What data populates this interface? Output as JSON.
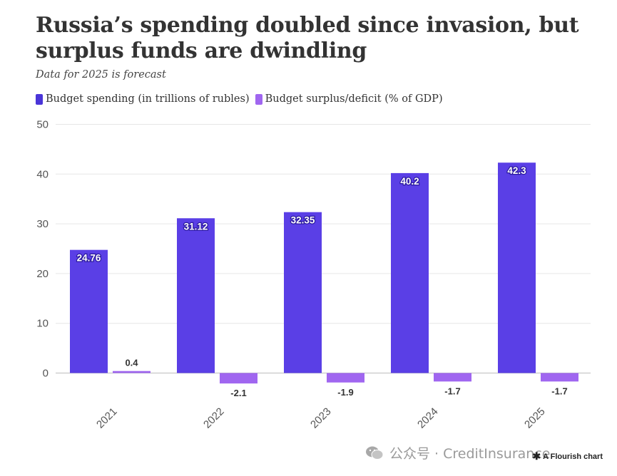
{
  "chart_data": {
    "type": "bar",
    "title": "Russia’s spending doubled since invasion, but surplus funds are dwindling",
    "subtitle": "Data for 2025 is forecast",
    "categories": [
      "2021",
      "2022",
      "2023",
      "2024",
      "2025"
    ],
    "series": [
      {
        "name": "Budget spending (in trillions of rubles)",
        "color": "#5a3fe6",
        "values": [
          24.76,
          31.12,
          32.35,
          40.2,
          42.3
        ],
        "labels": [
          "24.76",
          "31.12",
          "32.35",
          "40.2",
          "42.3"
        ]
      },
      {
        "name": "Budget surplus/deficit (% of GDP)",
        "color": "#a066f0",
        "values": [
          0.4,
          -2.1,
          -1.9,
          -1.7,
          -1.7
        ],
        "labels": [
          "0.4",
          "-2.1",
          "-1.9",
          "-1.7",
          "-1.7"
        ]
      }
    ],
    "y_ticks": [
      0,
      10,
      20,
      30,
      40,
      50
    ],
    "ylim": [
      -3,
      50
    ],
    "grid": true,
    "legend_position": "top-left"
  },
  "watermark": {
    "text": "公众号 · CreditInsurance",
    "icon": "wechat-icon"
  },
  "credit": {
    "text": "A Flourish chart",
    "icon": "flourish-star-icon"
  }
}
